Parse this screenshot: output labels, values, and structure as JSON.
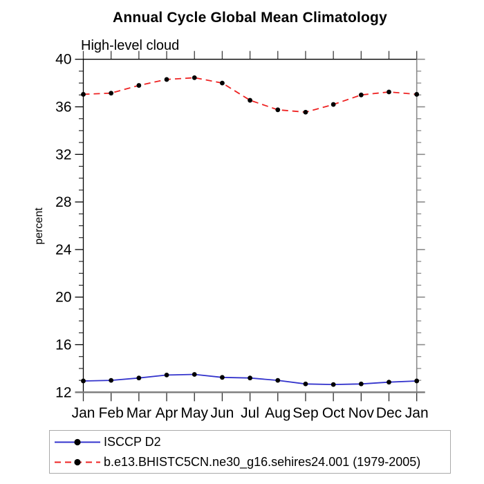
{
  "header": {
    "title": "Annual Cycle Global Mean Climatology",
    "subtitle": "High-level cloud"
  },
  "chart_data": {
    "type": "line",
    "title": "Annual Cycle Global Mean Climatology",
    "subtitle": "High-level cloud",
    "xlabel": "",
    "ylabel": "percent",
    "categories": [
      "Jan",
      "Feb",
      "Mar",
      "Apr",
      "May",
      "Jun",
      "Jul",
      "Aug",
      "Sep",
      "Oct",
      "Nov",
      "Dec",
      "Jan"
    ],
    "ylim": [
      12,
      40
    ],
    "yticks": [
      12,
      16,
      20,
      24,
      28,
      32,
      36,
      40
    ],
    "ytick_minor_step": 1,
    "grid": false,
    "legend_position": "bottom-left-boxed",
    "marker_color": "#000000",
    "series": [
      {
        "name": "ISCCP D2",
        "color": "#3333cc",
        "style": "solid",
        "marker": "filled-circle",
        "values": [
          12.95,
          13.0,
          13.2,
          13.45,
          13.5,
          13.25,
          13.2,
          13.0,
          12.7,
          12.65,
          12.7,
          12.85,
          12.95
        ]
      },
      {
        "name": "b.e13.BHISTC5CN.ne30_g16.sehires24.001 (1979-2005)",
        "color": "#ee2222",
        "style": "dashed",
        "marker": "filled-circle",
        "values": [
          37.05,
          37.15,
          37.8,
          38.3,
          38.45,
          38.0,
          36.55,
          35.75,
          35.55,
          36.2,
          37.0,
          37.25,
          37.05
        ]
      }
    ]
  }
}
